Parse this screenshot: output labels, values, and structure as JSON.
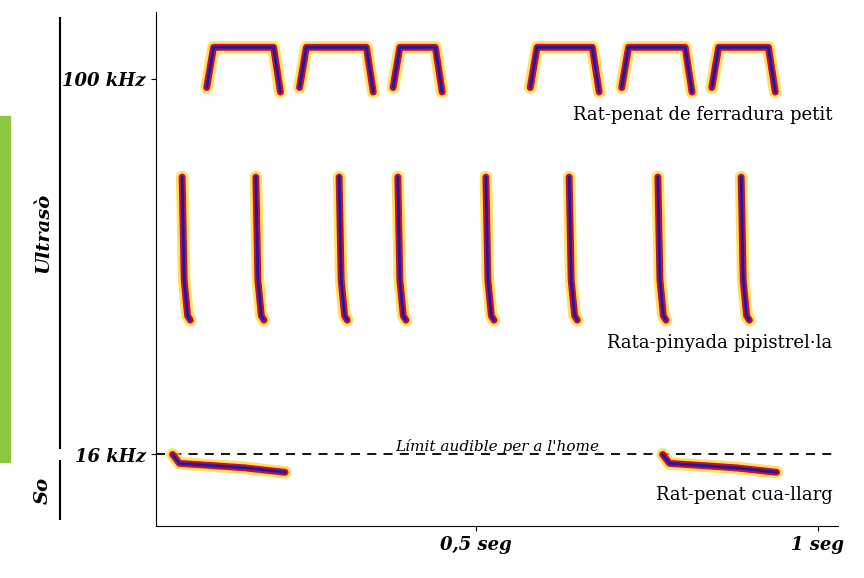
{
  "chart_data": {
    "type": "line",
    "xlim": [
      0.03,
      1.03
    ],
    "ylim": [
      0,
      115
    ],
    "xticks": [
      {
        "value": 0.5,
        "label": "0,5 seg"
      },
      {
        "value": 1,
        "label": "1 seg"
      }
    ],
    "yticks": [
      {
        "value": 16,
        "label": "16 kHz"
      },
      {
        "value": 100,
        "label": "100 kHz"
      }
    ],
    "y_sections": [
      {
        "label": "Ultrasò",
        "from": 16,
        "to": 115
      },
      {
        "label": "So",
        "from": 0,
        "to": 16
      }
    ],
    "threshold": {
      "value": 16,
      "label": "Límit audible per a l'home"
    },
    "series": [
      {
        "name": "Rat-penat de ferradura petit",
        "color": "#c8102e",
        "x": [
          0.105,
          0.115,
          0.203,
          0.213,
          null,
          0.241,
          0.251,
          0.339,
          0.349,
          null,
          0.378,
          0.388,
          0.44,
          0.45,
          null,
          0.579,
          0.589,
          0.67,
          0.68,
          null,
          0.713,
          0.723,
          0.806,
          0.816,
          null,
          0.845,
          0.855,
          0.928,
          0.938
        ],
        "values": [
          98,
          107,
          107,
          97,
          null,
          98,
          107,
          107,
          97,
          null,
          98,
          107,
          107,
          97,
          null,
          98,
          107,
          107,
          97,
          null,
          98,
          107,
          107,
          97,
          null,
          98,
          107,
          107,
          97
        ]
      },
      {
        "name": "Rata-pinyada pipistrel·la",
        "color": "#c8102e",
        "x": [
          0.069,
          0.072,
          0.077,
          0.081,
          null,
          0.177,
          0.18,
          0.185,
          0.189,
          null,
          0.299,
          0.302,
          0.307,
          0.311,
          null,
          0.385,
          0.388,
          0.393,
          0.397,
          null,
          0.514,
          0.517,
          0.522,
          0.526,
          null,
          0.636,
          0.639,
          0.644,
          0.648,
          null,
          0.766,
          0.769,
          0.774,
          0.778,
          null,
          0.888,
          0.891,
          0.896,
          0.9
        ],
        "values": [
          78,
          55,
          47,
          46,
          null,
          78,
          55,
          47,
          46,
          null,
          78,
          55,
          47,
          46,
          null,
          78,
          55,
          47,
          46,
          null,
          78,
          55,
          47,
          46,
          null,
          78,
          55,
          47,
          46,
          null,
          78,
          55,
          47,
          46,
          null,
          78,
          55,
          47,
          46
        ]
      },
      {
        "name": "Rat-penat cua-llarg",
        "color": "#c8102e",
        "x": [
          0.055,
          0.065,
          0.16,
          0.22,
          null,
          0.773,
          0.783,
          0.88,
          0.94
        ],
        "values": [
          16,
          14,
          13,
          12,
          null,
          16,
          14,
          13,
          12
        ]
      }
    ]
  }
}
